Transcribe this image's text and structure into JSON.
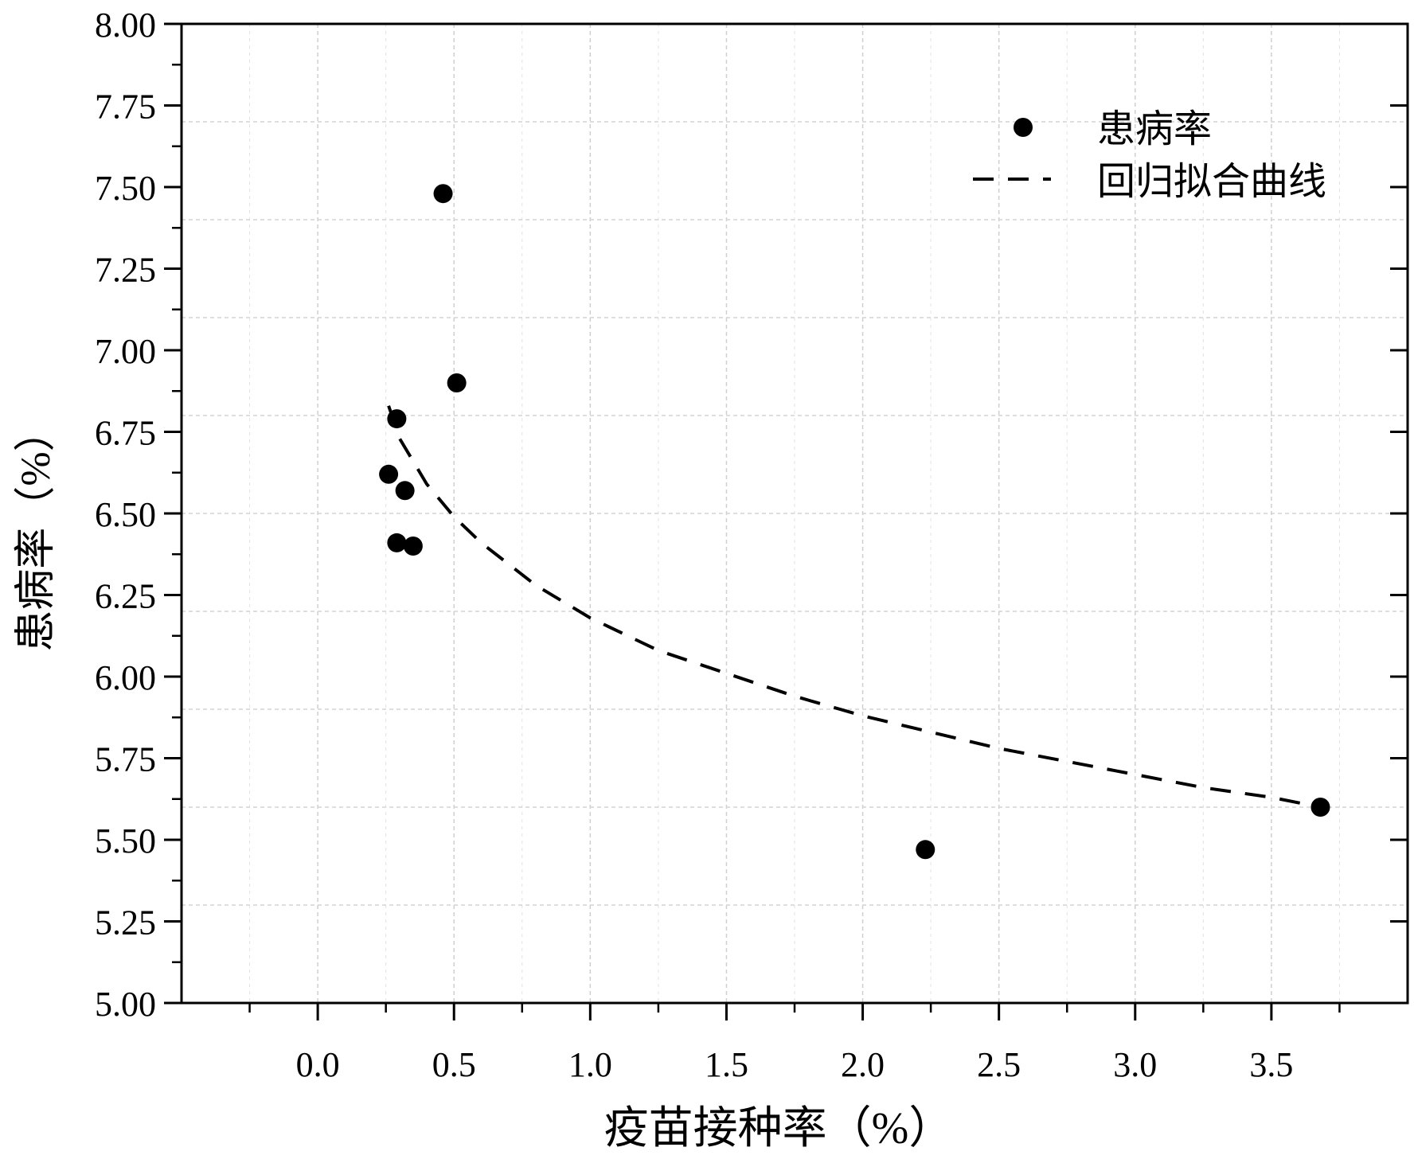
{
  "chart_data": {
    "type": "scatter",
    "xlabel": "疫苗接种率（%）",
    "ylabel": "患病率（%）",
    "xlim": [
      -0.5,
      4.0
    ],
    "ylim": [
      5.0,
      8.0
    ],
    "x_ticks": [
      "0.0",
      "0.5",
      "1.0",
      "1.5",
      "2.0",
      "2.5",
      "3.0",
      "3.5"
    ],
    "x_tick_values": [
      0.0,
      0.5,
      1.0,
      1.5,
      2.0,
      2.5,
      3.0,
      3.5
    ],
    "y_ticks": [
      "5.00",
      "5.25",
      "5.50",
      "5.75",
      "6.00",
      "6.25",
      "6.50",
      "6.75",
      "7.00",
      "7.25",
      "7.50",
      "7.75",
      "8.00"
    ],
    "y_tick_values": [
      5.0,
      5.25,
      5.5,
      5.75,
      6.0,
      6.25,
      6.5,
      6.75,
      7.0,
      7.25,
      7.5,
      7.75,
      8.0
    ],
    "grid": true,
    "legend_position": "top-right",
    "series": [
      {
        "name": "患病率",
        "kind": "scatter",
        "points": [
          {
            "x": 0.26,
            "y": 6.62
          },
          {
            "x": 0.29,
            "y": 6.41
          },
          {
            "x": 0.29,
            "y": 6.79
          },
          {
            "x": 0.32,
            "y": 6.57
          },
          {
            "x": 0.35,
            "y": 6.4
          },
          {
            "x": 0.46,
            "y": 7.48
          },
          {
            "x": 0.51,
            "y": 6.9
          },
          {
            "x": 2.23,
            "y": 5.47
          },
          {
            "x": 3.68,
            "y": 5.6
          }
        ]
      },
      {
        "name": "回归拟合曲线",
        "kind": "line",
        "style": "dashed",
        "points": [
          {
            "x": 0.26,
            "y": 6.83
          },
          {
            "x": 0.3,
            "y": 6.73
          },
          {
            "x": 0.35,
            "y": 6.66
          },
          {
            "x": 0.4,
            "y": 6.59
          },
          {
            "x": 0.5,
            "y": 6.49
          },
          {
            "x": 0.6,
            "y": 6.41
          },
          {
            "x": 0.8,
            "y": 6.28
          },
          {
            "x": 1.0,
            "y": 6.18
          },
          {
            "x": 1.25,
            "y": 6.08
          },
          {
            "x": 1.5,
            "y": 6.01
          },
          {
            "x": 1.75,
            "y": 5.94
          },
          {
            "x": 2.0,
            "y": 5.88
          },
          {
            "x": 2.25,
            "y": 5.83
          },
          {
            "x": 2.5,
            "y": 5.78
          },
          {
            "x": 2.75,
            "y": 5.74
          },
          {
            "x": 3.0,
            "y": 5.7
          },
          {
            "x": 3.25,
            "y": 5.66
          },
          {
            "x": 3.5,
            "y": 5.63
          },
          {
            "x": 3.68,
            "y": 5.6
          }
        ]
      }
    ]
  }
}
